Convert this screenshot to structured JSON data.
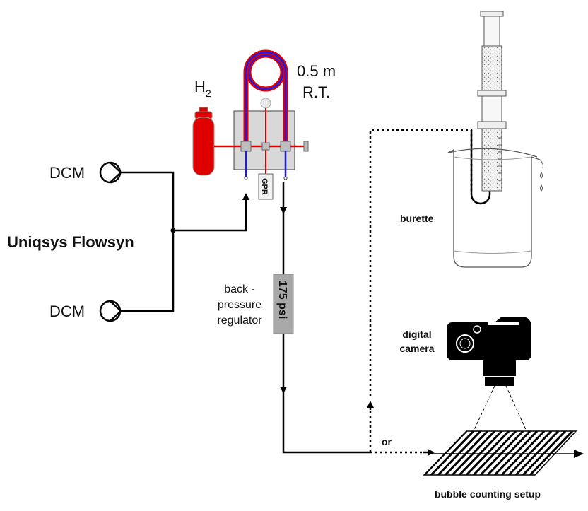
{
  "labels": {
    "pump_top": "DCM",
    "pump_bottom": "DCM",
    "system": "Uniqsys Flowsyn",
    "gas_main": "H",
    "gas_sub": "2",
    "coil_length": "0.5 m",
    "coil_temp": "R.T.",
    "gpr": "GPR",
    "bpr_line1": "back -",
    "bpr_line2": "pressure",
    "bpr_line3": "regulator",
    "bpr_value": "175 psi",
    "burette": "burette",
    "camera_line1": "digital",
    "camera_line2": "camera",
    "or": "or",
    "bubble": "bubble counting setup"
  },
  "colors": {
    "hydrogen_red": "#e00000",
    "solvent_blue": "#1a1aee",
    "module_grey": "#d8d8d8",
    "bpr_grey": "#a8a8a8"
  }
}
